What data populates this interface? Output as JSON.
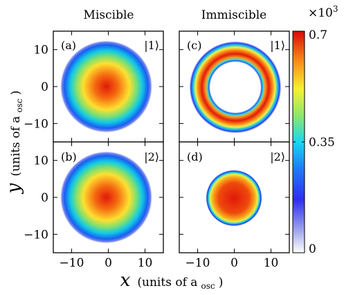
{
  "chart_data": {
    "type": "heatmap",
    "columns": [
      "Miscible",
      "Immiscible"
    ],
    "panels": [
      {
        "label": "(a)",
        "state": "|1⟩",
        "shape": "disk",
        "peak": 0.7,
        "outer_radius": 12
      },
      {
        "label": "(b)",
        "state": "|2⟩",
        "shape": "disk",
        "peak": 0.7,
        "outer_radius": 12
      },
      {
        "label": "(c)",
        "state": "|1⟩",
        "shape": "ring",
        "peak": 0.7,
        "inner_radius": 7,
        "outer_radius": 12
      },
      {
        "label": "(d)",
        "state": "|2⟩",
        "shape": "disk",
        "peak": 0.7,
        "outer_radius": 7
      }
    ],
    "x_ticks": [
      "−10",
      "0",
      "10"
    ],
    "x_tick_values": [
      -10,
      0,
      10
    ],
    "y_ticks": [
      "10",
      "0",
      "−10"
    ],
    "y_tick_values": [
      10,
      0,
      -10
    ],
    "xlim": [
      -15,
      15
    ],
    "ylim": [
      -15,
      15
    ],
    "xlabel_var": "x",
    "xlabel_unit": "(units of a",
    "ylabel_var": "y",
    "ylabel_unit": "(units of a",
    "osc_subscript": "osc",
    "colorbar": {
      "multiplier": "×10",
      "multiplier_exp": "3",
      "ticks": [
        "0.7",
        "0.35",
        "0"
      ],
      "tick_values": [
        0.7,
        0.35,
        0
      ],
      "range": [
        0,
        0.7
      ],
      "colormap": "jet"
    }
  }
}
